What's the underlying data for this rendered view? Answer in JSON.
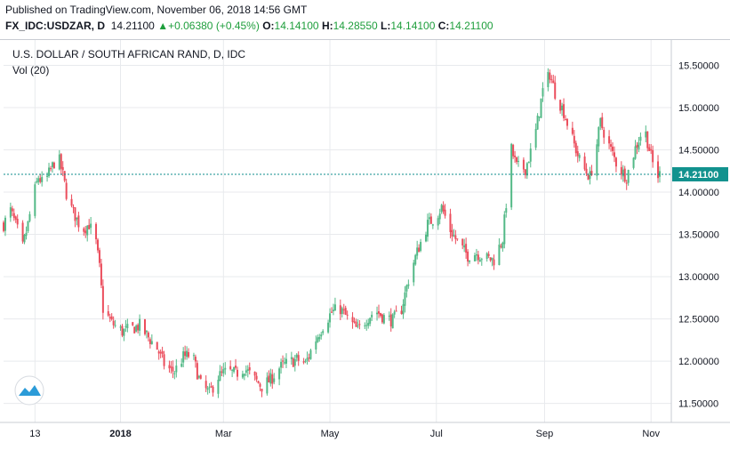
{
  "header": {
    "published": "Published on TradingView.com, November 06, 2018 14:56 GMT",
    "symbol": "FX_IDC:USDZAR, D",
    "last": "14.21100",
    "change": "+0.06380 (+0.45%)",
    "open_label": "O:",
    "open": "14.14100",
    "high_label": "H:",
    "high": "14.28550",
    "low_label": "L:",
    "low": "14.14100",
    "close_label": "C:",
    "close": "14.21100"
  },
  "colors": {
    "up": "#53b987",
    "down": "#eb4d5c",
    "grid": "#e8eaed",
    "price_line": "#0e8c8c",
    "price_tag": "#12928e",
    "text": "#131722"
  },
  "chart_data": {
    "type": "candlestick",
    "title": "U.S. DOLLAR / SOUTH AFRICAN RAND, D, IDC",
    "subtitle": "Vol (20)",
    "x_ticks": [
      "13",
      "2018",
      "Mar",
      "May",
      "Jul",
      "Sep",
      "Nov"
    ],
    "y_ticks": [
      "11.50000",
      "12.00000",
      "12.50000",
      "13.00000",
      "13.50000",
      "14.00000",
      "14.50000",
      "15.00000",
      "15.50000"
    ],
    "ylim": [
      11.38,
      15.8
    ],
    "last_price": 14.211,
    "last_price_label": "14.21100",
    "grid": true,
    "close_path": [
      [
        "2017-10-26",
        13.62
      ],
      [
        "2017-10-30",
        13.78
      ],
      [
        "2017-11-03",
        13.55
      ],
      [
        "2017-11-06",
        13.35
      ],
      [
        "2017-11-09",
        13.62
      ],
      [
        "2017-11-12",
        13.95
      ],
      [
        "2017-11-15",
        14.18
      ],
      [
        "2017-11-18",
        14.08
      ],
      [
        "2017-11-21",
        14.22
      ],
      [
        "2017-11-24",
        14.35
      ],
      [
        "2017-11-26",
        14.45
      ],
      [
        "2017-11-29",
        14.2
      ],
      [
        "2017-12-02",
        13.88
      ],
      [
        "2017-12-06",
        13.72
      ],
      [
        "2017-12-10",
        13.55
      ],
      [
        "2017-12-14",
        13.62
      ],
      [
        "2017-12-18",
        13.4
      ],
      [
        "2017-12-20",
        13.1
      ],
      [
        "2017-12-22",
        12.62
      ],
      [
        "2017-12-27",
        12.45
      ],
      [
        "2018-01-02",
        12.35
      ],
      [
        "2018-01-07",
        12.38
      ],
      [
        "2018-01-12",
        12.42
      ],
      [
        "2018-01-17",
        12.28
      ],
      [
        "2018-01-22",
        12.15
      ],
      [
        "2018-01-27",
        11.92
      ],
      [
        "2018-02-01",
        11.88
      ],
      [
        "2018-02-06",
        12.05
      ],
      [
        "2018-02-11",
        12.08
      ],
      [
        "2018-02-16",
        11.72
      ],
      [
        "2018-02-21",
        11.62
      ],
      [
        "2018-02-26",
        11.82
      ],
      [
        "2018-03-03",
        11.88
      ],
      [
        "2018-03-08",
        11.85
      ],
      [
        "2018-03-13",
        11.92
      ],
      [
        "2018-03-18",
        11.8
      ],
      [
        "2018-03-23",
        11.7
      ],
      [
        "2018-03-28",
        11.78
      ],
      [
        "2018-04-02",
        11.92
      ],
      [
        "2018-04-07",
        11.98
      ],
      [
        "2018-04-12",
        12.02
      ],
      [
        "2018-04-17",
        11.97
      ],
      [
        "2018-04-22",
        12.22
      ],
      [
        "2018-04-27",
        12.42
      ],
      [
        "2018-05-02",
        12.58
      ],
      [
        "2018-05-07",
        12.62
      ],
      [
        "2018-05-12",
        12.48
      ],
      [
        "2018-05-17",
        12.36
      ],
      [
        "2018-05-22",
        12.5
      ],
      [
        "2018-05-27",
        12.6
      ],
      [
        "2018-06-01",
        12.52
      ],
      [
        "2018-06-06",
        12.48
      ],
      [
        "2018-06-11",
        12.62
      ],
      [
        "2018-06-16",
        13.05
      ],
      [
        "2018-06-21",
        13.35
      ],
      [
        "2018-06-26",
        13.62
      ],
      [
        "2018-07-01",
        13.72
      ],
      [
        "2018-07-04",
        13.82
      ],
      [
        "2018-07-09",
        13.55
      ],
      [
        "2018-07-14",
        13.38
      ],
      [
        "2018-07-19",
        13.25
      ],
      [
        "2018-07-24",
        13.28
      ],
      [
        "2018-07-29",
        13.22
      ],
      [
        "2018-08-03",
        13.2
      ],
      [
        "2018-08-08",
        13.45
      ],
      [
        "2018-08-13",
        14.5
      ],
      [
        "2018-08-16",
        14.3
      ],
      [
        "2018-08-21",
        14.28
      ],
      [
        "2018-08-26",
        14.6
      ],
      [
        "2018-08-31",
        15.2
      ],
      [
        "2018-09-04",
        15.4
      ],
      [
        "2018-09-07",
        15.18
      ],
      [
        "2018-09-12",
        14.95
      ],
      [
        "2018-09-17",
        14.62
      ],
      [
        "2018-09-22",
        14.32
      ],
      [
        "2018-09-27",
        14.18
      ],
      [
        "2018-09-30",
        14.45
      ],
      [
        "2018-10-03",
        14.82
      ],
      [
        "2018-10-08",
        14.55
      ],
      [
        "2018-10-13",
        14.3
      ],
      [
        "2018-10-18",
        14.18
      ],
      [
        "2018-10-23",
        14.52
      ],
      [
        "2018-10-28",
        14.78
      ],
      [
        "2018-11-01",
        14.42
      ],
      [
        "2018-11-04",
        14.18
      ],
      [
        "2018-11-06",
        14.21
      ]
    ]
  }
}
